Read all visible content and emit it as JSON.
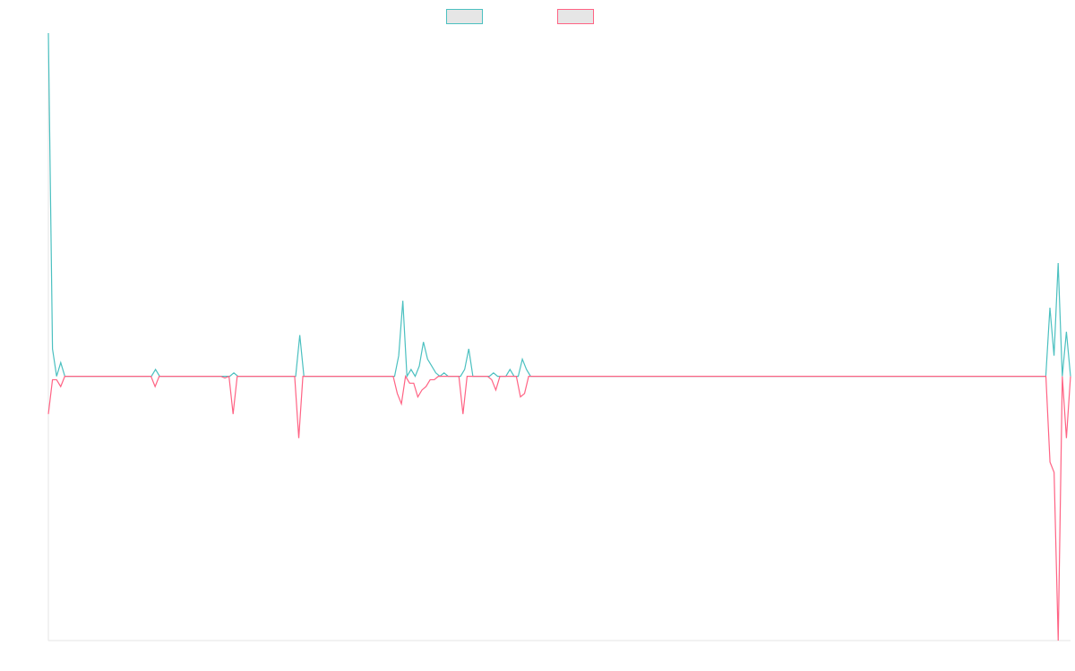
{
  "chart_data": {
    "type": "line",
    "title": "",
    "xlabel": "",
    "ylabel": "",
    "legend_position": "top-center",
    "grid": false,
    "ylim": [
      -77,
      100
    ],
    "series": [
      {
        "color": "#4bc0c0",
        "legend_fill": "#e6e6e6",
        "values": [
          100,
          8,
          0,
          4,
          0,
          0,
          0,
          0,
          0,
          0,
          0,
          0,
          0,
          0,
          0,
          0,
          0,
          0,
          0,
          0,
          0,
          0,
          0,
          0,
          0,
          0,
          2,
          0,
          0,
          0,
          0,
          0,
          0,
          0,
          0,
          0,
          0,
          0,
          0,
          0,
          0,
          0,
          0,
          0,
          0,
          1,
          0,
          0,
          0,
          0,
          0,
          0,
          0,
          0,
          0,
          0,
          0,
          0,
          0,
          0,
          0,
          12,
          0,
          0,
          0,
          0,
          0,
          0,
          0,
          0,
          0,
          0,
          0,
          0,
          0,
          0,
          0,
          0,
          0,
          0,
          0,
          0,
          0,
          0,
          0,
          6,
          22,
          0,
          2,
          0,
          3,
          10,
          5,
          3,
          1,
          0,
          1,
          0,
          0,
          0,
          0,
          2,
          8,
          0,
          0,
          0,
          0,
          0,
          1,
          0,
          0,
          0,
          2,
          0,
          0,
          5,
          2,
          0,
          0,
          0,
          0,
          0,
          0,
          0,
          0,
          0,
          0,
          0,
          0,
          0,
          0,
          0,
          0,
          0,
          0,
          0,
          0,
          0,
          0,
          0,
          0,
          0,
          0,
          0,
          0,
          0,
          0,
          0,
          0,
          0,
          0,
          0,
          0,
          0,
          0,
          0,
          0,
          0,
          0,
          0,
          0,
          0,
          0,
          0,
          0,
          0,
          0,
          0,
          0,
          0,
          0,
          0,
          0,
          0,
          0,
          0,
          0,
          0,
          0,
          0,
          0,
          0,
          0,
          0,
          0,
          0,
          0,
          0,
          0,
          0,
          0,
          0,
          0,
          0,
          0,
          0,
          0,
          0,
          0,
          0,
          0,
          0,
          0,
          0,
          0,
          0,
          0,
          0,
          0,
          0,
          0,
          0,
          0,
          0,
          0,
          0,
          0,
          0,
          0,
          0,
          0,
          0,
          0,
          0,
          0,
          0,
          0,
          0,
          0,
          0,
          0,
          0,
          0,
          0,
          0,
          0,
          0,
          0,
          0,
          0,
          0,
          0,
          0,
          20,
          6,
          33,
          0,
          13,
          0
        ]
      },
      {
        "color": "#ff6384",
        "legend_fill": "#e6e6e6",
        "values": [
          -11,
          -1,
          -1,
          -3,
          0,
          0,
          0,
          0,
          0,
          0,
          0,
          0,
          0,
          0,
          0,
          0,
          0,
          0,
          0,
          0,
          0,
          0,
          0,
          0,
          0,
          0,
          -3,
          0,
          0,
          0,
          0,
          0,
          0,
          0,
          0,
          0,
          0,
          0,
          0,
          0,
          0,
          0,
          0,
          -0.5,
          0,
          -11,
          0,
          0,
          0,
          0,
          0,
          0,
          0,
          0,
          0,
          0,
          0,
          0,
          0,
          0,
          0,
          -18,
          0,
          0,
          0,
          0,
          0,
          0,
          0,
          0,
          0,
          0,
          0,
          0,
          0,
          0,
          0,
          0,
          0,
          0,
          0,
          0,
          0,
          0,
          0,
          -5,
          -8,
          0,
          -2,
          -2,
          -6,
          -4,
          -3,
          -1,
          -1,
          0,
          0,
          0,
          0,
          0,
          0,
          -11,
          0,
          0,
          0,
          0,
          0,
          0,
          -1,
          -4,
          0,
          0,
          0,
          0,
          0,
          -6,
          -5,
          0,
          0,
          0,
          0,
          0,
          0,
          0,
          0,
          0,
          0,
          0,
          0,
          0,
          0,
          0,
          0,
          0,
          0,
          0,
          0,
          0,
          0,
          0,
          0,
          0,
          0,
          0,
          0,
          0,
          0,
          0,
          0,
          0,
          0,
          0,
          0,
          0,
          0,
          0,
          0,
          0,
          0,
          0,
          0,
          0,
          0,
          0,
          0,
          0,
          0,
          0,
          0,
          0,
          0,
          0,
          0,
          0,
          0,
          0,
          0,
          0,
          0,
          0,
          0,
          0,
          0,
          0,
          0,
          0,
          0,
          0,
          0,
          0,
          0,
          0,
          0,
          0,
          0,
          0,
          0,
          0,
          0,
          0,
          0,
          0,
          0,
          0,
          0,
          0,
          0,
          0,
          0,
          0,
          0,
          0,
          0,
          0,
          0,
          0,
          0,
          0,
          0,
          0,
          0,
          0,
          0,
          0,
          0,
          0,
          0,
          0,
          0,
          0,
          0,
          0,
          0,
          0,
          0,
          0,
          0,
          0,
          0,
          0,
          0,
          0,
          0,
          0,
          -25,
          -28,
          -77,
          0,
          -18,
          0
        ]
      }
    ]
  }
}
